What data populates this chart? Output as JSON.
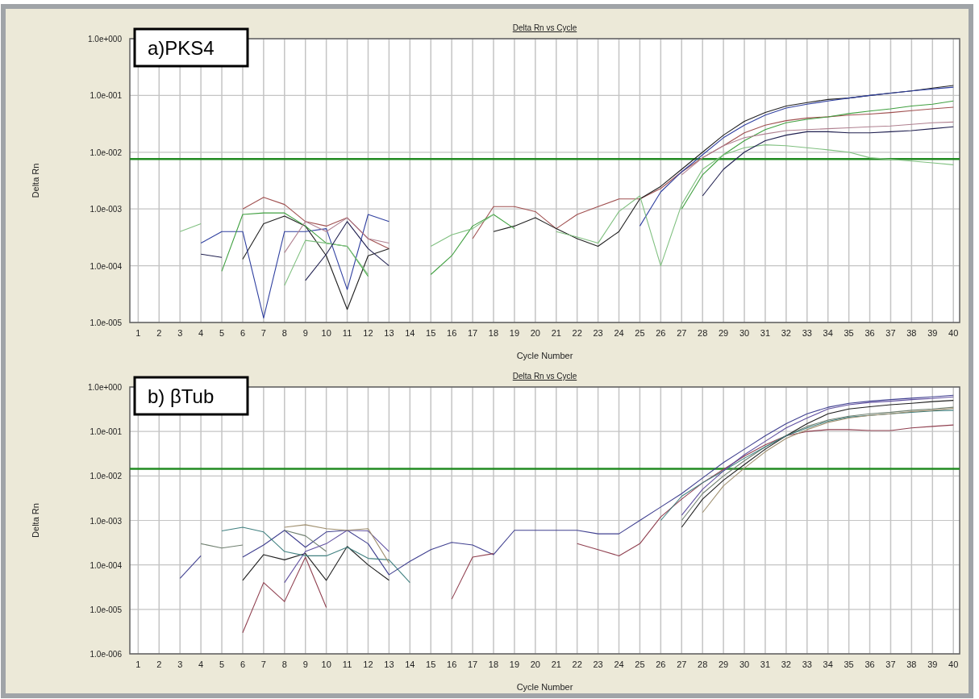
{
  "chart_data": [
    {
      "type": "line",
      "title": "Delta Rn vs Cycle",
      "xlabel": "Cycle Number",
      "ylabel": "Delta Rn",
      "annotations": [
        "a)PKS4"
      ],
      "log": "y",
      "grid": true,
      "xlim": [
        0.6,
        40.3
      ],
      "xticks": [
        1,
        2,
        3,
        4,
        5,
        6,
        7,
        8,
        9,
        10,
        11,
        12,
        13,
        14,
        15,
        16,
        17,
        18,
        19,
        20,
        21,
        22,
        23,
        24,
        25,
        26,
        27,
        28,
        29,
        30,
        31,
        32,
        33,
        34,
        35,
        36,
        37,
        38,
        39,
        40
      ],
      "ylim": [
        1e-05,
        1
      ],
      "yticks": [
        {
          "value": 1e-05,
          "label": "1.0e-005"
        },
        {
          "value": 0.0001,
          "label": "1.0e-004"
        },
        {
          "value": 0.001,
          "label": "1.0e-003"
        },
        {
          "value": 0.01,
          "label": "1.0e-002"
        },
        {
          "value": 0.1,
          "label": "1.0e-001"
        },
        {
          "value": 1,
          "label": "1.0e+000"
        }
      ],
      "ref_lines": [
        {
          "axis": "y",
          "value": 0.0076,
          "color": "#228b22"
        }
      ],
      "series": [
        {
          "color": "#a05050",
          "x": [
            6,
            7,
            8,
            9,
            10,
            11,
            12,
            13
          ],
          "values": [
            0.001,
            0.0016,
            0.0012,
            0.0006,
            0.0005,
            0.0007,
            0.0003,
            0.0002
          ]
        },
        {
          "color": "#a05050",
          "x": [
            17,
            18,
            19,
            20,
            21,
            22,
            23,
            24,
            25,
            26,
            27,
            28,
            29,
            30,
            31,
            32,
            33,
            34,
            35,
            36,
            37,
            38,
            39,
            40
          ],
          "values": [
            0.0003,
            0.0011,
            0.0011,
            0.0009,
            0.00045,
            0.0008,
            0.0011,
            0.0015,
            0.0015,
            0.0023,
            0.0045,
            0.008,
            0.013,
            0.022,
            0.03,
            0.036,
            0.04,
            0.042,
            0.045,
            0.047,
            0.05,
            0.054,
            0.058,
            0.062
          ]
        },
        {
          "color": "#202020",
          "x": [
            6,
            7,
            8,
            9,
            10,
            11,
            12,
            13
          ],
          "values": [
            0.00013,
            0.00055,
            0.00075,
            0.0005,
            0.00015,
            1.7e-05,
            0.00015,
            0.0002
          ]
        },
        {
          "color": "#202020",
          "x": [
            18,
            19,
            20,
            21,
            22,
            23,
            24,
            25,
            26,
            27,
            28,
            29,
            30,
            31,
            32,
            33,
            34,
            35,
            36,
            37,
            38,
            39,
            40
          ],
          "values": [
            0.0004,
            0.0005,
            0.0007,
            0.00045,
            0.0003,
            0.00022,
            0.0004,
            0.0015,
            0.0025,
            0.005,
            0.01,
            0.02,
            0.035,
            0.05,
            0.065,
            0.075,
            0.085,
            0.09,
            0.1,
            0.11,
            0.12,
            0.135,
            0.15
          ]
        },
        {
          "color": "#3040a0",
          "x": [
            4,
            5,
            6,
            7,
            8,
            9,
            10,
            11,
            12,
            13
          ],
          "values": [
            0.00025,
            0.0004,
            0.0004,
            1.2e-05,
            0.0004,
            0.0004,
            0.00045,
            3.8e-05,
            0.0008,
            0.0006
          ]
        },
        {
          "color": "#3040a0",
          "x": [
            25,
            26,
            27,
            28,
            29,
            30,
            31,
            32,
            33,
            34,
            35,
            36,
            37,
            38,
            39,
            40
          ],
          "values": [
            0.0005,
            0.002,
            0.0045,
            0.009,
            0.018,
            0.03,
            0.045,
            0.06,
            0.07,
            0.08,
            0.09,
            0.1,
            0.11,
            0.12,
            0.13,
            0.14
          ]
        },
        {
          "color": "#40a040",
          "x": [
            5,
            6,
            7,
            8,
            9,
            10,
            11,
            12
          ],
          "values": [
            8e-05,
            0.0008,
            0.00085,
            0.00085,
            0.0005,
            0.00025,
            0.00022,
            6.5e-05
          ]
        },
        {
          "color": "#40a040",
          "x": [
            15,
            16,
            17,
            18,
            19
          ],
          "values": [
            7e-05,
            0.00015,
            0.0005,
            0.0008,
            0.00045
          ]
        },
        {
          "color": "#40a040",
          "x": [
            27,
            28,
            29,
            30,
            31,
            32,
            33,
            34,
            35,
            36,
            37,
            38,
            39,
            40
          ],
          "values": [
            0.001,
            0.004,
            0.009,
            0.016,
            0.025,
            0.033,
            0.038,
            0.042,
            0.048,
            0.053,
            0.058,
            0.065,
            0.07,
            0.08
          ]
        },
        {
          "color": "#80c080",
          "x": [
            3,
            4
          ],
          "values": [
            0.0004,
            0.00055
          ]
        },
        {
          "color": "#80c080",
          "x": [
            8,
            9,
            10,
            11,
            12
          ],
          "values": [
            4.5e-05,
            0.00028,
            0.00025,
            0.00022,
            7e-05
          ]
        },
        {
          "color": "#80c080",
          "x": [
            15,
            16,
            17,
            18
          ],
          "values": [
            0.00022,
            0.00035,
            0.00045,
            0.0008
          ]
        },
        {
          "color": "#80c080",
          "x": [
            21,
            22,
            23,
            24,
            25,
            26,
            27,
            28,
            29,
            30,
            31,
            32,
            33,
            34,
            35,
            36,
            37,
            38,
            39,
            40
          ],
          "values": [
            0.0004,
            0.00032,
            0.00025,
            0.0009,
            0.0017,
            0.0001,
            0.0012,
            0.005,
            0.009,
            0.012,
            0.0135,
            0.013,
            0.012,
            0.011,
            0.01,
            0.008,
            0.0075,
            0.007,
            0.0065,
            0.006
          ]
        },
        {
          "color": "#b08090",
          "x": [
            8,
            9,
            10,
            11,
            12,
            13
          ],
          "values": [
            0.00017,
            0.0006,
            0.0004,
            0.0007,
            0.0003,
            0.00025
          ]
        },
        {
          "color": "#b08090",
          "x": [
            27,
            28,
            29,
            30,
            31,
            32,
            33,
            34,
            35,
            36,
            37,
            38,
            39,
            40
          ],
          "values": [
            0.004,
            0.008,
            0.013,
            0.018,
            0.021,
            0.024,
            0.025,
            0.026,
            0.027,
            0.028,
            0.029,
            0.031,
            0.033,
            0.034
          ]
        },
        {
          "color": "#202050",
          "x": [
            4,
            5
          ],
          "values": [
            0.00016,
            0.00014
          ]
        },
        {
          "color": "#202050",
          "x": [
            9,
            10,
            11,
            12,
            13
          ],
          "values": [
            5.5e-05,
            0.00016,
            0.0006,
            0.0002,
            0.0001
          ]
        },
        {
          "color": "#202050",
          "x": [
            28,
            29,
            30,
            31,
            32,
            33,
            34,
            35,
            36,
            37,
            38,
            39,
            40
          ],
          "values": [
            0.0017,
            0.005,
            0.01,
            0.016,
            0.02,
            0.023,
            0.023,
            0.022,
            0.022,
            0.023,
            0.024,
            0.026,
            0.028
          ]
        }
      ]
    },
    {
      "type": "line",
      "title": "Delta Rn vs Cycle",
      "xlabel": "Cycle Number",
      "ylabel": "Delta Rn",
      "annotations": [
        "b) βTub"
      ],
      "log": "y",
      "grid": true,
      "xlim": [
        0.6,
        40.3
      ],
      "xticks": [
        1,
        2,
        3,
        4,
        5,
        6,
        7,
        8,
        9,
        10,
        11,
        12,
        13,
        14,
        15,
        16,
        17,
        18,
        19,
        20,
        21,
        22,
        23,
        24,
        25,
        26,
        27,
        28,
        29,
        30,
        31,
        32,
        33,
        34,
        35,
        36,
        37,
        38,
        39,
        40
      ],
      "ylim": [
        1e-06,
        1
      ],
      "yticks": [
        {
          "value": 1e-06,
          "label": "1.0e-006"
        },
        {
          "value": 1e-05,
          "label": "1.0e-005"
        },
        {
          "value": 0.0001,
          "label": "1.0e-004"
        },
        {
          "value": 0.001,
          "label": "1.0e-003"
        },
        {
          "value": 0.01,
          "label": "1.0e-002"
        },
        {
          "value": 0.1,
          "label": "1.0e-001"
        },
        {
          "value": 1,
          "label": "1.0e+000"
        }
      ],
      "ref_lines": [
        {
          "axis": "y",
          "value": 0.0145,
          "color": "#228b22"
        }
      ],
      "series": [
        {
          "color": "#404090",
          "x": [
            3,
            4
          ],
          "values": [
            5e-05,
            0.00016
          ]
        },
        {
          "color": "#404090",
          "x": [
            6,
            7,
            8,
            9,
            10,
            11,
            12,
            13,
            14,
            15,
            16,
            17,
            18,
            19,
            20,
            21,
            22,
            23,
            24,
            25,
            26,
            27,
            28,
            29,
            30,
            31,
            32,
            33,
            34,
            35,
            36,
            37,
            38,
            39,
            40
          ],
          "values": [
            0.00015,
            0.00028,
            0.0006,
            0.00025,
            0.00055,
            0.0006,
            0.0003,
            6e-05,
            0.00012,
            0.00022,
            0.00032,
            0.00028,
            0.00017,
            0.0006,
            0.0006,
            0.0006,
            0.0006,
            0.0005,
            0.0005,
            0.001,
            0.002,
            0.004,
            0.009,
            0.02,
            0.04,
            0.08,
            0.15,
            0.25,
            0.35,
            0.43,
            0.48,
            0.52,
            0.56,
            0.6,
            0.65
          ]
        },
        {
          "color": "#904050",
          "x": [
            6,
            7,
            8,
            9,
            10
          ],
          "values": [
            3e-06,
            4e-05,
            1.5e-05,
            0.00015,
            1.1e-05
          ]
        },
        {
          "color": "#904050",
          "x": [
            16,
            17,
            18
          ],
          "values": [
            1.7e-05,
            0.00015,
            0.00018
          ]
        },
        {
          "color": "#904050",
          "x": [
            22,
            23,
            24,
            25,
            26,
            27,
            28,
            29,
            30,
            31,
            32,
            33,
            34,
            35,
            36,
            37,
            38,
            39,
            40
          ],
          "values": [
            0.0003,
            0.00022,
            0.00016,
            0.0003,
            0.0012,
            0.003,
            0.007,
            0.014,
            0.028,
            0.05,
            0.08,
            0.1,
            0.11,
            0.11,
            0.105,
            0.105,
            0.12,
            0.13,
            0.14
          ]
        },
        {
          "color": "#708070",
          "x": [
            4,
            5,
            6
          ],
          "values": [
            0.0003,
            0.00024,
            0.00028
          ]
        },
        {
          "color": "#708070",
          "x": [
            8,
            9,
            10
          ],
          "values": [
            0.0006,
            0.00045,
            0.0002
          ]
        },
        {
          "color": "#708070",
          "x": [
            27,
            28,
            29,
            30,
            31,
            32,
            33,
            34,
            35,
            36,
            37,
            38,
            39,
            40
          ],
          "values": [
            0.001,
            0.004,
            0.01,
            0.022,
            0.045,
            0.08,
            0.13,
            0.18,
            0.22,
            0.25,
            0.27,
            0.3,
            0.32,
            0.35
          ]
        },
        {
          "color": "#202020",
          "x": [
            6,
            7,
            8,
            9,
            10,
            11,
            12,
            13
          ],
          "values": [
            4.5e-05,
            0.00017,
            0.00013,
            0.00018,
            4.5e-05,
            0.00026,
            0.0001,
            4.5e-05
          ]
        },
        {
          "color": "#202020",
          "x": [
            27,
            28,
            29,
            30,
            31,
            32,
            33,
            34,
            35,
            36,
            37,
            38,
            39,
            40
          ],
          "values": [
            0.0007,
            0.003,
            0.008,
            0.018,
            0.04,
            0.08,
            0.15,
            0.25,
            0.32,
            0.36,
            0.4,
            0.43,
            0.47,
            0.5
          ]
        },
        {
          "color": "#408080",
          "x": [
            5,
            6,
            7,
            8,
            9,
            10,
            11,
            12,
            13,
            14
          ],
          "values": [
            0.00058,
            0.0007,
            0.00055,
            0.0002,
            0.00016,
            0.00016,
            0.00025,
            0.00014,
            0.00013,
            4e-05
          ]
        },
        {
          "color": "#408080",
          "x": [
            26,
            27,
            28,
            29,
            30,
            31,
            32,
            33,
            34,
            35,
            36,
            37,
            38,
            39,
            40
          ],
          "values": [
            0.001,
            0.0035,
            0.007,
            0.013,
            0.025,
            0.045,
            0.08,
            0.12,
            0.17,
            0.21,
            0.23,
            0.25,
            0.27,
            0.29,
            0.3
          ]
        },
        {
          "color": "#6050a0",
          "x": [
            8,
            9,
            10,
            11,
            12,
            13
          ],
          "values": [
            4e-05,
            0.0002,
            0.0003,
            0.0006,
            0.00058,
            0.0002
          ]
        },
        {
          "color": "#6050a0",
          "x": [
            27,
            28,
            29,
            30,
            31,
            32,
            33,
            34,
            35,
            36,
            37,
            38,
            39,
            40
          ],
          "values": [
            0.0013,
            0.005,
            0.013,
            0.03,
            0.06,
            0.12,
            0.2,
            0.32,
            0.4,
            0.45,
            0.48,
            0.52,
            0.55,
            0.6
          ]
        },
        {
          "color": "#a09070",
          "x": [
            8,
            9,
            10,
            11,
            12,
            13
          ],
          "values": [
            0.0007,
            0.0008,
            0.00065,
            0.0006,
            0.00065,
            0.00011
          ]
        },
        {
          "color": "#a09070",
          "x": [
            28,
            29,
            30,
            31,
            32,
            33,
            34,
            35,
            36,
            37,
            38,
            39,
            40
          ],
          "values": [
            0.0015,
            0.006,
            0.015,
            0.035,
            0.07,
            0.11,
            0.16,
            0.2,
            0.23,
            0.25,
            0.28,
            0.3,
            0.33
          ]
        }
      ]
    }
  ]
}
